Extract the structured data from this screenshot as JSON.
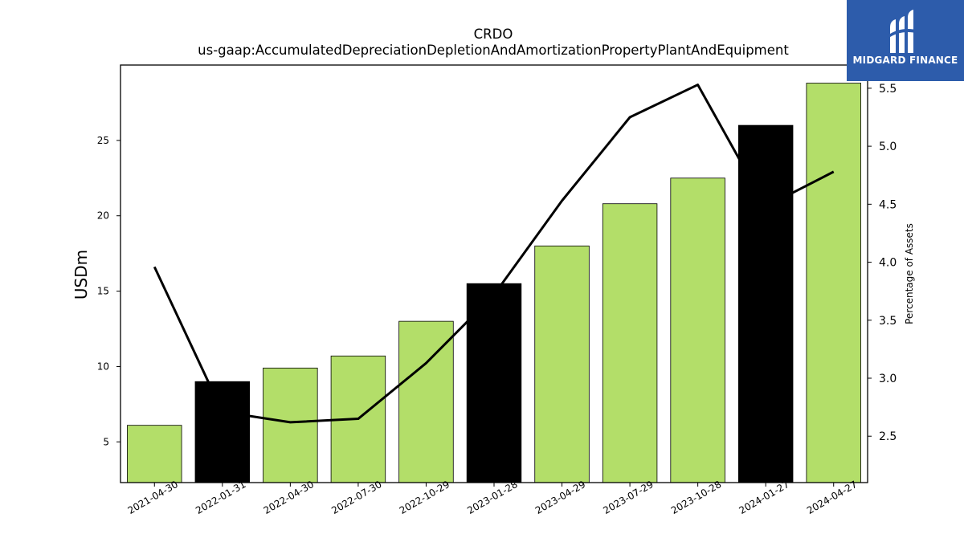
{
  "chart_data": {
    "type": "bar+line",
    "title": "CRDO",
    "subtitle": "us-gaap:AccumulatedDepreciationDepletionAndAmortizationPropertyPlantAndEquipment",
    "ylabel": "USDm",
    "ylabel_right": "Percentage of Assets",
    "categories": [
      "2021-04-30",
      "2022-01-31",
      "2022-04-30",
      "2022-07-30",
      "2022-10-29",
      "2023-01-28",
      "2023-04-29",
      "2023-07-29",
      "2023-10-28",
      "2024-01-27",
      "2024-04-27"
    ],
    "bar_series": {
      "values": [
        6.1,
        9.0,
        9.9,
        10.7,
        13.0,
        15.5,
        18.0,
        20.8,
        22.5,
        26.0,
        28.8
      ],
      "colors": [
        "#b3de69",
        "#000000",
        "#b3de69",
        "#b3de69",
        "#b3de69",
        "#000000",
        "#b3de69",
        "#b3de69",
        "#b3de69",
        "#000000",
        "#b3de69"
      ]
    },
    "line_series": {
      "values": [
        3.96,
        2.71,
        2.62,
        2.65,
        3.13,
        3.72,
        4.53,
        5.25,
        5.53,
        4.48,
        4.78
      ],
      "color": "#000000"
    },
    "ylim_left": [
      2.3,
      30.0
    ],
    "ylim_right": [
      2.1,
      5.7
    ],
    "yticks_left": [
      "5",
      "10",
      "15",
      "20",
      "25"
    ],
    "yticks_right": [
      "2.5",
      "3.0",
      "3.5",
      "4.0",
      "4.5",
      "5.0",
      "5.5"
    ],
    "grid": false,
    "legend": "none"
  },
  "logo": {
    "text": "MIDGARD FINANCE",
    "bg_color": "#2d5cab"
  }
}
